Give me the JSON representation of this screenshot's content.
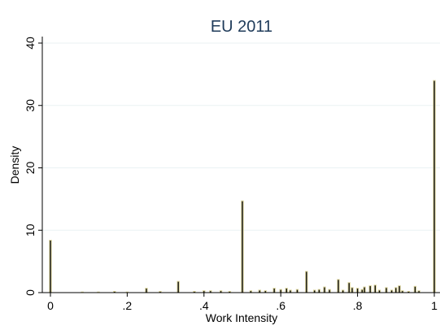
{
  "chart_data": {
    "type": "bar",
    "title": "EU 2011",
    "xlabel": "Work Intensity",
    "ylabel": "Density",
    "xlim": [
      0,
      1
    ],
    "ylim": [
      0,
      40
    ],
    "grid": true,
    "colors": {
      "bar_fill": "#0b0b0b",
      "bar_outline": "#d9d29a",
      "title": "#1f3b5a",
      "grid": "#eaf2f3"
    },
    "x_ticks": [
      {
        "value": 0,
        "label": "0"
      },
      {
        "value": 0.2,
        "label": ".2"
      },
      {
        "value": 0.4,
        "label": ".4"
      },
      {
        "value": 0.6,
        "label": ".6"
      },
      {
        "value": 0.8,
        "label": ".8"
      },
      {
        "value": 1,
        "label": "1"
      }
    ],
    "y_ticks": [
      {
        "value": 0,
        "label": "0"
      },
      {
        "value": 10,
        "label": "10"
      },
      {
        "value": 20,
        "label": "20"
      },
      {
        "value": 30,
        "label": "30"
      },
      {
        "value": 40,
        "label": "40"
      }
    ],
    "bar_width": 0.01,
    "x": [
      0.0,
      0.083,
      0.125,
      0.167,
      0.2,
      0.25,
      0.286,
      0.333,
      0.375,
      0.4,
      0.417,
      0.444,
      0.467,
      0.5,
      0.522,
      0.545,
      0.56,
      0.583,
      0.6,
      0.615,
      0.625,
      0.643,
      0.667,
      0.688,
      0.7,
      0.714,
      0.727,
      0.75,
      0.762,
      0.778,
      0.786,
      0.8,
      0.812,
      0.818,
      0.833,
      0.846,
      0.857,
      0.875,
      0.889,
      0.9,
      0.909,
      0.917,
      0.933,
      0.95,
      0.96,
      1.0
    ],
    "values": [
      8.4,
      0.1,
      0.1,
      0.2,
      0.1,
      0.7,
      0.2,
      1.8,
      0.2,
      0.3,
      0.3,
      0.3,
      0.2,
      14.7,
      0.3,
      0.4,
      0.3,
      0.7,
      0.5,
      0.7,
      0.4,
      0.5,
      3.4,
      0.4,
      0.5,
      0.9,
      0.5,
      2.1,
      0.4,
      1.6,
      0.8,
      0.7,
      0.5,
      0.9,
      1.1,
      1.2,
      0.4,
      0.8,
      0.4,
      0.8,
      1.1,
      0.3,
      0.2,
      1.0,
      0.3,
      34.0
    ]
  }
}
